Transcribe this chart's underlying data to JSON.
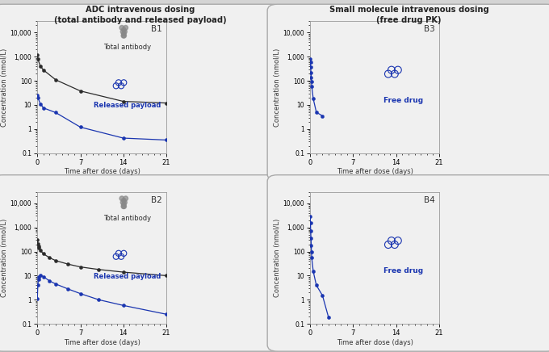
{
  "title_left": "ADC intravenous dosing\n(total antibody and released payload)",
  "title_right": "Small molecule intravenous dosing\n(free drug PK)",
  "xlabel": "Time after dose (days)",
  "ylabel": "Concentration (nmol/L)",
  "bg_color": "#d4d4d4",
  "panel_bg": "#f5f5f5",
  "black_color": "#2b2b2b",
  "blue_color": "#1a35b0",
  "B1_black_x": [
    0,
    0.08,
    0.5,
    1,
    3,
    7,
    14,
    21
  ],
  "B1_black_y": [
    1200,
    800,
    400,
    280,
    110,
    38,
    14,
    12
  ],
  "B1_blue_x": [
    0,
    0.08,
    0.5,
    1,
    3,
    7,
    14,
    21
  ],
  "B1_blue_y": [
    26,
    20,
    11,
    7.5,
    4.8,
    1.2,
    0.42,
    0.35
  ],
  "B2_black_x": [
    0,
    0.08,
    0.17,
    0.25,
    0.5,
    1,
    2,
    3,
    5,
    7,
    10,
    14,
    21
  ],
  "B2_black_y": [
    310,
    210,
    160,
    140,
    110,
    80,
    55,
    42,
    30,
    23,
    18,
    14,
    10
  ],
  "B2_blue_x": [
    0,
    0.08,
    0.17,
    0.25,
    0.5,
    1,
    2,
    3,
    5,
    7,
    10,
    14,
    21
  ],
  "B2_blue_y": [
    1.1,
    4.0,
    7.0,
    9.0,
    10.5,
    9.0,
    6.0,
    4.5,
    2.8,
    1.8,
    1.0,
    0.58,
    0.25
  ],
  "B3_blue_x": [
    0,
    0.04,
    0.08,
    0.13,
    0.17,
    0.21,
    0.25,
    0.5,
    1.0,
    2.0
  ],
  "B3_blue_y": [
    820,
    600,
    380,
    220,
    140,
    90,
    60,
    18,
    5,
    3.5
  ],
  "B4_blue_x": [
    0,
    0.04,
    0.08,
    0.13,
    0.17,
    0.21,
    0.25,
    0.5,
    1.0,
    2.0,
    3.0
  ],
  "B4_blue_y": [
    2800,
    1500,
    700,
    350,
    180,
    100,
    55,
    15,
    4,
    1.5,
    0.18
  ],
  "ylim": [
    0.1,
    30000
  ],
  "xlim": [
    0,
    21
  ],
  "xticks": [
    0,
    7,
    14,
    21
  ],
  "yticks": [
    0.1,
    1,
    10,
    100,
    1000,
    10000
  ],
  "ytick_labels": [
    "0.1",
    "1",
    "10",
    "100",
    "1,000",
    "10,000"
  ]
}
